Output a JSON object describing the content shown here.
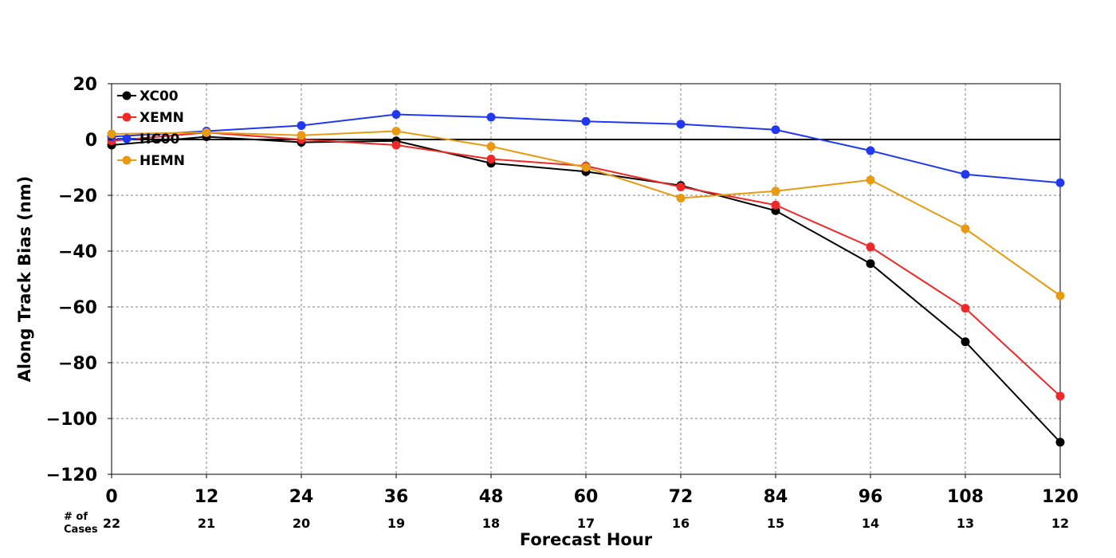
{
  "chart_data": {
    "type": "line",
    "title": "",
    "xlabel": "Forecast Hour",
    "ylabel": "Along Track Bias (nm)",
    "x": [
      0,
      12,
      24,
      36,
      48,
      60,
      72,
      84,
      96,
      108,
      120
    ],
    "xticks": [
      "0",
      "12",
      "24",
      "36",
      "48",
      "60",
      "72",
      "84",
      "96",
      "108",
      "120"
    ],
    "xlim": [
      0,
      120
    ],
    "ylim": [
      -120,
      20
    ],
    "yticks": [
      20,
      0,
      -20,
      -40,
      -60,
      -80,
      -100,
      -120
    ],
    "ytick_labels": [
      "20",
      "0",
      "−20",
      "−40",
      "−60",
      "−80",
      "−100",
      "−120"
    ],
    "grid": true,
    "zero_line": true,
    "legend_position": "top-left",
    "cases_title_line1": "# of",
    "cases_title_line2": "Cases",
    "cases": [
      "22",
      "21",
      "20",
      "19",
      "18",
      "17",
      "16",
      "15",
      "14",
      "13",
      "12"
    ],
    "series": [
      {
        "name": "XC00",
        "color": "#000000",
        "values": [
          -2,
          1,
          -1,
          -0.5,
          -8.5,
          -11.5,
          -16.5,
          -25.5,
          -44.5,
          -72.5,
          -108.5
        ]
      },
      {
        "name": "XEMN",
        "color": "#f02828",
        "values": [
          -0.5,
          2.5,
          0,
          -2,
          -7,
          -9.5,
          -17,
          -23.5,
          -38.5,
          -60.5,
          -92
        ]
      },
      {
        "name": "HC00",
        "color": "#2038f0",
        "values": [
          1,
          3,
          5,
          9,
          8,
          6.5,
          5.5,
          3.5,
          -4,
          -12.5,
          -15.5
        ]
      },
      {
        "name": "HEMN",
        "color": "#e89a10",
        "values": [
          2,
          2.5,
          1.5,
          3,
          -2.5,
          -10,
          -21,
          -18.5,
          -14.5,
          -32,
          -56
        ]
      }
    ]
  }
}
